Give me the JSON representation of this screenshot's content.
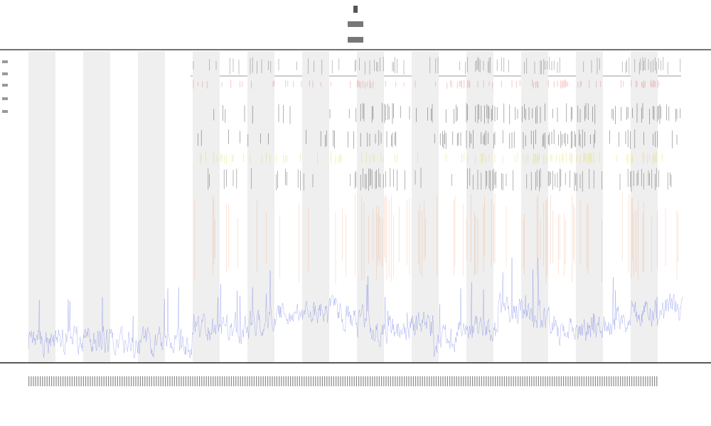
{
  "chart_data": {
    "type": "track-plot"
  }
}
